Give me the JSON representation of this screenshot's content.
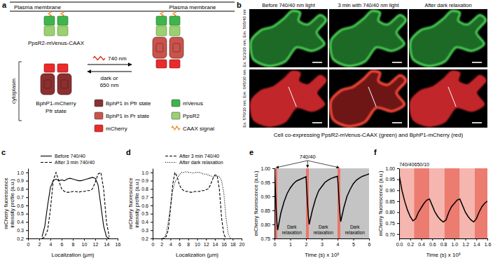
{
  "diagram": {
    "panel": "a",
    "membrane": "Plasma membrane",
    "cytoplasm": "cytoplasm",
    "membrane_construct": "PpsR2-mVenus-CAAX",
    "cytoplasm_construct": "BphP1-mCherry",
    "cytoplasm_state": "Pfr state",
    "forward": "740 nm",
    "reverse": [
      "dark or",
      "650 nm"
    ],
    "legend": [
      {
        "label": "BphP1 in Pfr state",
        "color": "#8b2f2f"
      },
      {
        "label": "mVenus",
        "color": "#3db54a"
      },
      {
        "label": "BphP1 in Pr state",
        "color": "#c9544c"
      },
      {
        "label": "PpsR2",
        "color": "#9bd070"
      },
      {
        "label": "mCherry",
        "color": "#ec2a2a"
      },
      {
        "label": "CAAX signal",
        "color": "#f08a24"
      }
    ]
  },
  "micrographs": {
    "panel": "b",
    "columns": [
      "Before 740/40 nm light",
      "3 min with 740/40 nm light",
      "After dark relaxation"
    ],
    "rows": [
      {
        "label": "Ex. 523/20 nm; Em. 565/40 nm",
        "color": "#4fe05a"
      },
      {
        "label": "Ex. 570/30 nm; Em. 645/30 nm",
        "color": "#e82a2a"
      }
    ],
    "caption": "Cell co-expressing PpsR2-mVenus-CAAX (green) and BphP1-mCherry (red)"
  },
  "chart_data": [
    {
      "panel": "c",
      "type": "line",
      "xlabel": "Localization (µm)",
      "ylabel": [
        "mCherry fluorescence",
        "intensity profile (a.u.)"
      ],
      "x": [
        2.5,
        3,
        3.5,
        4,
        4.5,
        5,
        5.5,
        6,
        6.5,
        7,
        7.5,
        8,
        8.5,
        9,
        9.5,
        10,
        10.5,
        11,
        11.5,
        12,
        12.5,
        13,
        13.5,
        14,
        14.5
      ],
      "series": [
        {
          "name": "Before 740/40",
          "color": "#000000",
          "line_style": "solid",
          "values": [
            0.22,
            0.35,
            0.6,
            0.82,
            0.9,
            0.92,
            0.9,
            0.91,
            0.9,
            0.92,
            0.93,
            0.92,
            0.91,
            0.9,
            0.9,
            0.91,
            0.92,
            0.93,
            0.94,
            0.93,
            0.85,
            0.6,
            0.35,
            0.22,
            0.2
          ]
        },
        {
          "name": "After 3 min 740/40",
          "color": "#000000",
          "line_style": "dashed",
          "values": [
            0.2,
            0.22,
            0.3,
            0.55,
            0.9,
            1.0,
            0.9,
            0.8,
            0.77,
            0.76,
            0.76,
            0.77,
            0.77,
            0.76,
            0.77,
            0.77,
            0.78,
            0.78,
            0.8,
            0.88,
            0.98,
            1.0,
            0.8,
            0.4,
            0.22
          ]
        }
      ],
      "xlim": [
        0,
        16
      ],
      "xticks": [
        0,
        2,
        4,
        6,
        8,
        10,
        12,
        14,
        16
      ],
      "ylim": [
        0.2,
        1.05
      ],
      "yticks": [
        0.2,
        0.3,
        0.4,
        0.5,
        0.6,
        0.7,
        0.8,
        0.9,
        {
          "value": 1,
          "label": "1.0"
        }
      ],
      "legend": "top"
    },
    {
      "panel": "d",
      "type": "line",
      "xlabel": "Localization (µm)",
      "ylabel": [
        "mCherry fluorescence",
        "intensity profile (a.u.)"
      ],
      "x": [
        2,
        2.5,
        3,
        3.5,
        4,
        4.5,
        5,
        5.5,
        6,
        6.5,
        7,
        7.5,
        8,
        8.5,
        9,
        9.5,
        10,
        10.5,
        11,
        11.5,
        12,
        12.5,
        13,
        13.5,
        14,
        14.5,
        15,
        15.5,
        16,
        16.5,
        17,
        17.5,
        18
      ],
      "series": [
        {
          "name": "After 3 min 740/40",
          "color": "#000000",
          "line_style": "dashed",
          "values": [
            0.2,
            0.2,
            0.22,
            0.3,
            0.55,
            0.85,
            1.0,
            0.95,
            0.85,
            0.8,
            0.78,
            0.77,
            0.77,
            0.76,
            0.76,
            0.77,
            0.77,
            0.77,
            0.78,
            0.78,
            0.79,
            0.8,
            0.85,
            0.92,
            0.97,
            0.96,
            0.8,
            0.45,
            0.25,
            0.2,
            null,
            null,
            null
          ]
        },
        {
          "name": "After dark relaxation",
          "color": "#000000",
          "line_style": "dotted",
          "values": [
            null,
            0.2,
            0.25,
            0.4,
            0.6,
            0.78,
            0.88,
            0.93,
            0.97,
            1.0,
            1.0,
            1.01,
            1.0,
            1.0,
            0.99,
            1.0,
            1.0,
            1.0,
            0.99,
            0.98,
            0.98,
            0.97,
            0.96,
            0.95,
            0.95,
            0.96,
            0.95,
            0.9,
            0.75,
            0.45,
            0.25,
            0.2,
            null
          ]
        }
      ],
      "xlim": [
        0,
        20
      ],
      "xticks": [
        0,
        2,
        4,
        6,
        8,
        10,
        12,
        14,
        16,
        18,
        20
      ],
      "ylim": [
        0.2,
        1.05
      ],
      "yticks": [
        0.2,
        0.3,
        0.4,
        0.5,
        0.6,
        0.7,
        0.8,
        0.9,
        {
          "value": 1,
          "label": "1.0"
        }
      ],
      "legend": "top"
    },
    {
      "panel": "e",
      "type": "line",
      "xlabel": "Time (s) x 10³",
      "ylabel": "mCherry fluorescence (a.u.)",
      "annotation": "740/40",
      "regions": [
        {
          "x": [
            0,
            0.2
          ],
          "color": "#e8776e"
        },
        {
          "x": [
            0.2,
            2.0
          ],
          "color": "#c4c4c4",
          "label": "Dark relaxation"
        },
        {
          "x": [
            2.0,
            2.2
          ],
          "color": "#e8776e"
        },
        {
          "x": [
            2.2,
            4.0
          ],
          "color": "#c4c4c4",
          "label": "Dark relaxation"
        },
        {
          "x": [
            4.0,
            4.2
          ],
          "color": "#e8776e"
        },
        {
          "x": [
            4.2,
            6.0
          ],
          "color": "#c4c4c4",
          "label": "Dark relaxation"
        }
      ],
      "x": [
        0,
        0.05,
        0.1,
        0.15,
        0.2,
        0.4,
        0.6,
        0.8,
        1.0,
        1.2,
        1.4,
        1.6,
        1.8,
        2.0,
        2.05,
        2.1,
        2.15,
        2.2,
        2.4,
        2.6,
        2.8,
        3.0,
        3.2,
        3.4,
        3.6,
        3.8,
        4.0,
        4.05,
        4.1,
        4.15,
        4.2,
        4.4,
        4.6,
        4.8,
        5.0,
        5.2,
        5.4,
        5.6,
        5.8,
        6.0
      ],
      "series": [
        {
          "color": "#000000",
          "line_style": "solid",
          "values": [
            1.0,
            0.93,
            0.86,
            0.81,
            0.78,
            0.84,
            0.88,
            0.91,
            0.93,
            0.945,
            0.955,
            0.96,
            0.965,
            0.97,
            0.92,
            0.87,
            0.83,
            0.8,
            0.85,
            0.89,
            0.92,
            0.935,
            0.95,
            0.958,
            0.964,
            0.968,
            0.972,
            0.93,
            0.88,
            0.84,
            0.81,
            0.86,
            0.9,
            0.925,
            0.945,
            0.958,
            0.966,
            0.972,
            0.976,
            0.98
          ]
        }
      ],
      "xlim": [
        0,
        6
      ],
      "xticks": [
        0,
        1,
        2,
        3,
        4,
        5,
        6
      ],
      "ylim": [
        0.75,
        1.0
      ],
      "yticks": [
        0.75,
        {
          "value": 0.8,
          "label": "0.80"
        },
        0.85,
        {
          "value": 0.9,
          "label": "0.90"
        },
        0.95,
        {
          "value": 1,
          "label": "1.00"
        }
      ]
    },
    {
      "panel": "f",
      "type": "line",
      "xlabel": "Time (s) x 10³",
      "ylabel": "mCherry fluorescence (a.u.)",
      "regions": [
        {
          "x": [
            0,
            0.27
          ],
          "color": "#f4b6ae",
          "label": "740/40"
        },
        {
          "x": [
            0.27,
            0.55
          ],
          "color": "#ec7b70",
          "label": "650/10"
        },
        {
          "x": [
            0.55,
            0.82
          ],
          "color": "#f4b6ae"
        },
        {
          "x": [
            0.82,
            1.1
          ],
          "color": "#ec7b70"
        },
        {
          "x": [
            1.1,
            1.37
          ],
          "color": "#f4b6ae"
        },
        {
          "x": [
            1.37,
            1.6
          ],
          "color": "#ec7b70"
        }
      ],
      "x": [
        0,
        0.05,
        0.1,
        0.15,
        0.2,
        0.25,
        0.3,
        0.35,
        0.4,
        0.45,
        0.5,
        0.55,
        0.6,
        0.65,
        0.7,
        0.75,
        0.8,
        0.85,
        0.9,
        0.95,
        1.0,
        1.05,
        1.1,
        1.15,
        1.2,
        1.25,
        1.3,
        1.35,
        1.4,
        1.45,
        1.5,
        1.55,
        1.6
      ],
      "series": [
        {
          "color": "#000000",
          "line_style": "solid",
          "values": [
            0.97,
            0.9,
            0.85,
            0.81,
            0.78,
            0.76,
            0.77,
            0.8,
            0.82,
            0.84,
            0.855,
            0.86,
            0.83,
            0.8,
            0.78,
            0.765,
            0.755,
            0.765,
            0.8,
            0.825,
            0.84,
            0.855,
            0.86,
            0.83,
            0.8,
            0.78,
            0.765,
            0.755,
            0.77,
            0.8,
            0.825,
            0.84,
            0.85
          ]
        }
      ],
      "xlim": [
        0,
        1.6
      ],
      "xticks": [
        {
          "value": 0,
          "label": "0.0"
        },
        0.2,
        0.4,
        0.6,
        0.8,
        {
          "value": 1,
          "label": "1.0"
        },
        1.2,
        1.4,
        1.6
      ],
      "ylim": [
        0.68,
        1.0
      ],
      "yticks": [
        {
          "value": 0.7,
          "label": "0.70"
        },
        0.75,
        {
          "value": 0.8,
          "label": "0.80"
        },
        0.85,
        {
          "value": 0.9,
          "label": "0.90"
        },
        0.95,
        {
          "value": 1,
          "label": "1.00"
        }
      ]
    }
  ]
}
